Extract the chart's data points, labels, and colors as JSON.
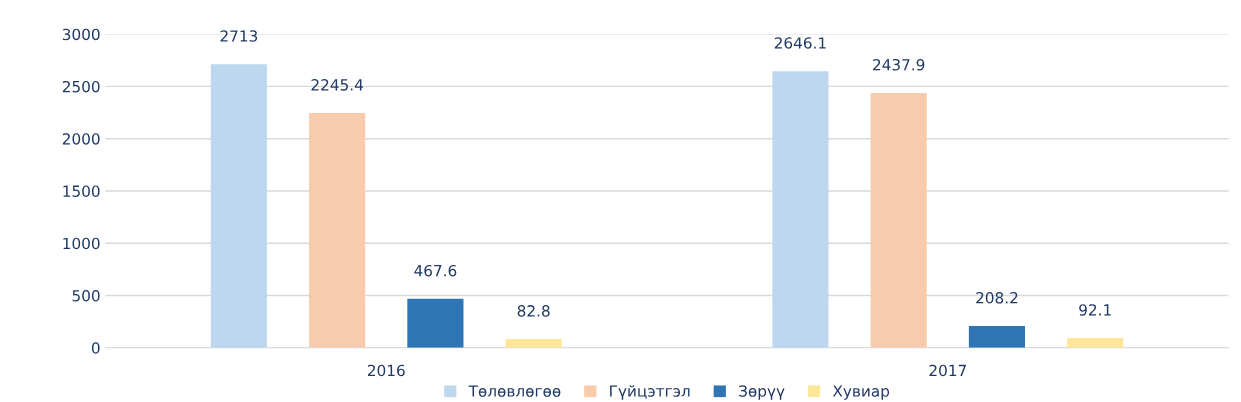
{
  "chart_data": {
    "type": "bar",
    "categories": [
      "2016",
      "2017"
    ],
    "series": [
      {
        "name": "Төлөвлөгөө",
        "color": "#bdd7ee",
        "values": [
          2713,
          2646.1
        ]
      },
      {
        "name": "Гүйцэтгэл",
        "color": "#f8cbad",
        "values": [
          2245.4,
          2437.9
        ]
      },
      {
        "name": "Зөрүү",
        "color": "#2e75b6",
        "values": [
          467.6,
          208.2
        ]
      },
      {
        "name": "Хувиар",
        "color": "#ffe699",
        "values": [
          82.8,
          92.1
        ]
      }
    ],
    "ylim": [
      0,
      3000
    ],
    "yticks": [
      0,
      500,
      1000,
      1500,
      2000,
      2500,
      3000
    ],
    "grid": "y",
    "legend": "bottom",
    "data_labels": true
  }
}
